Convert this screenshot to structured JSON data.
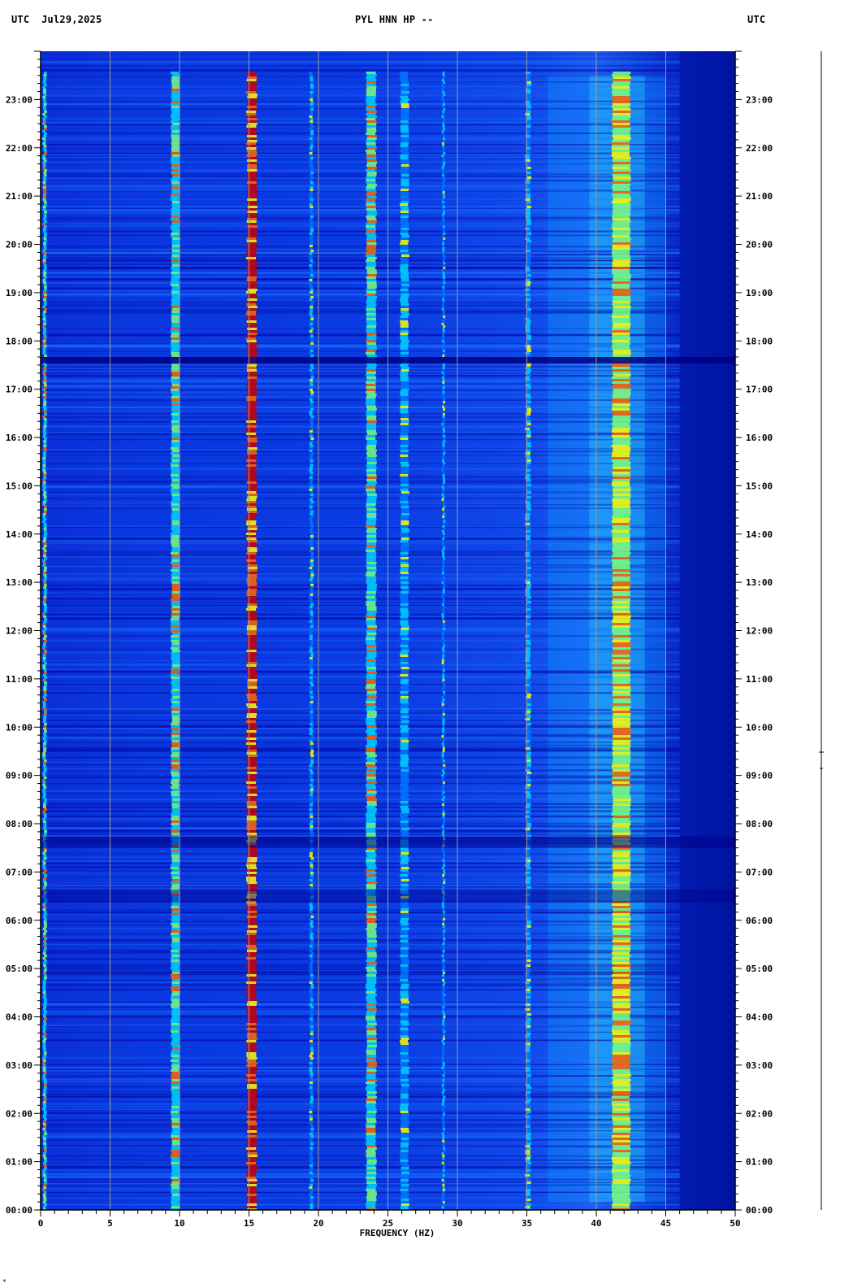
{
  "header": {
    "left": "UTC  Jul29,2025",
    "center": "PYL HNN HP --",
    "right": "UTC"
  },
  "chart_data": {
    "type": "heatmap",
    "title": "PYL HNN HP --",
    "date": "Jul29,2025",
    "xlabel": "FREQUENCY (HZ)",
    "xlim": [
      0,
      50
    ],
    "x_ticks": [
      0,
      5,
      10,
      15,
      20,
      25,
      30,
      35,
      40,
      45,
      50
    ],
    "ylabel_left": "UTC",
    "ylabel_right": "UTC",
    "ylim_hours": [
      0,
      24
    ],
    "y_ticks": [
      "00:00",
      "01:00",
      "02:00",
      "03:00",
      "04:00",
      "05:00",
      "06:00",
      "07:00",
      "08:00",
      "09:00",
      "10:00",
      "11:00",
      "12:00",
      "13:00",
      "14:00",
      "15:00",
      "16:00",
      "17:00",
      "18:00",
      "19:00",
      "20:00",
      "21:00",
      "22:00",
      "23:00"
    ],
    "y_tick_hours": [
      0,
      1,
      2,
      3,
      4,
      5,
      6,
      7,
      8,
      9,
      10,
      11,
      12,
      13,
      14,
      15,
      16,
      17,
      18,
      19,
      20,
      21,
      22,
      23
    ],
    "colormap": [
      "#00008b",
      "#0033dd",
      "#0077ff",
      "#00d4ff",
      "#7dff7d",
      "#ffff00",
      "#ff6600",
      "#cc0000"
    ],
    "spectral_lines_hz": [
      0.3,
      9.7,
      15.2,
      19.5,
      23.8,
      26.2,
      29.0,
      35.1,
      41.8
    ],
    "energetic_band_hz": [
      39.5,
      45.0
    ],
    "quiet_band_start_hz": 46.0,
    "data_gap_hour": 17.6
  },
  "footer_mark": "*"
}
